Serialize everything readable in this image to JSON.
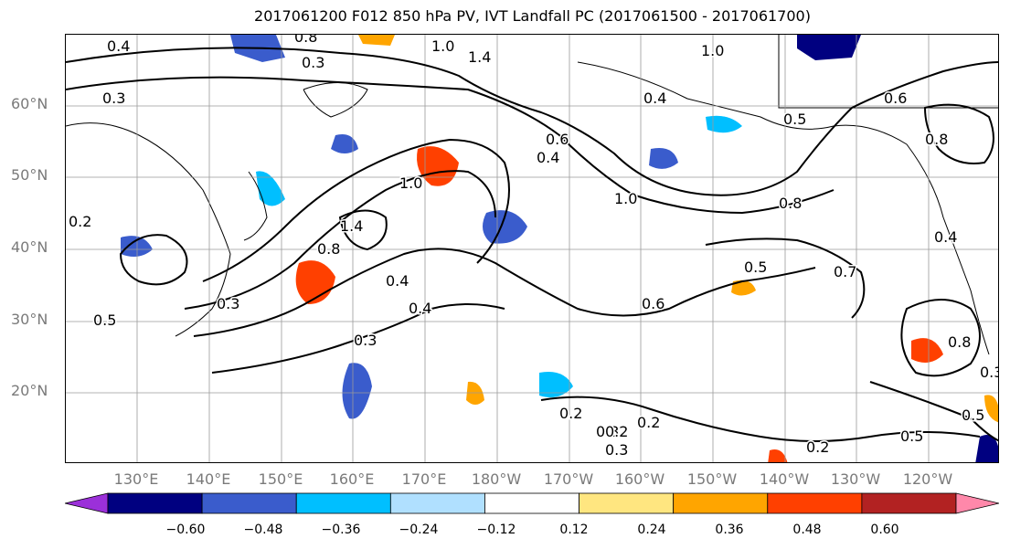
{
  "title": "2017061200 F012 850 hPa PV, IVT Landfall PC (2017061500 - 2017061700)",
  "lat_labels": [
    "60°N",
    "50°N",
    "40°N",
    "30°N",
    "20°N"
  ],
  "lon_labels": [
    "130°E",
    "140°E",
    "150°E",
    "160°E",
    "170°E",
    "180°W",
    "170°W",
    "160°W",
    "150°W",
    "140°W",
    "130°W",
    "120°W"
  ],
  "colorbar": {
    "ticks": [
      "−0.60",
      "−0.48",
      "−0.36",
      "−0.24",
      "−0.12",
      "0.12",
      "0.24",
      "0.36",
      "0.48",
      "0.60"
    ],
    "colors": [
      "#9b30d9",
      "#000080",
      "#3a5ccc",
      "#00bfff",
      "#b0e0ff",
      "#ffffff",
      "#ffe680",
      "#ffa500",
      "#ff4000",
      "#b22222",
      "#ff88aa"
    ]
  },
  "contour_labels": [
    "0.4",
    "0.3",
    "0.8",
    "1.0",
    "1.4",
    "1.0",
    "0.4",
    "0.5",
    "0.6",
    "0.8",
    "0.3",
    "1.0",
    "0.4",
    "1.0",
    "0.6",
    "0.2",
    "0.3",
    "0.8",
    "1.4",
    "0.8",
    "0.4",
    "0.4",
    "0.3",
    "0.5",
    "0.7",
    "0.6",
    "0.2",
    "0.3",
    "0.2",
    "0.3",
    "0.2",
    "0.5",
    "0.2",
    "0.5",
    "0.3",
    "0.8",
    "0.4",
    "0.5"
  ]
}
